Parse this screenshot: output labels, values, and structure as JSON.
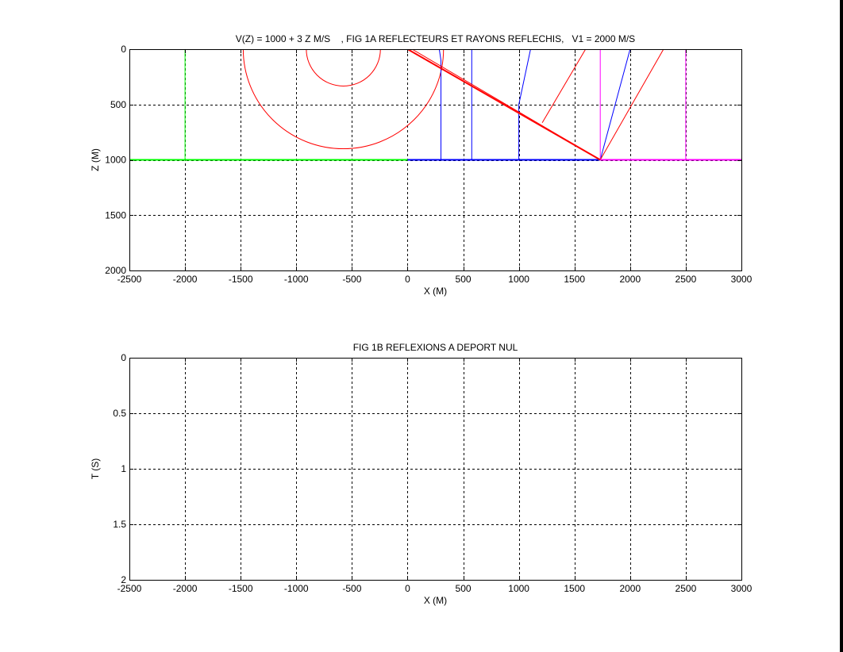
{
  "chart_data": [
    {
      "type": "line",
      "title": "V(Z) = 1000 + 3 Z M/S    , FIG 1A REFLECTEURS ET RAYONS REFLECHIS,   V1 = 2000 M/S",
      "xlabel": "X (M)",
      "ylabel": "Z (M)",
      "xlim": [
        -2500,
        3000
      ],
      "ylim": [
        0,
        2000
      ],
      "y_reversed": true,
      "grid": true,
      "xticks": [
        "-2500",
        "-2000",
        "-1500",
        "-1000",
        "-500",
        "0",
        "500",
        "1000",
        "1500",
        "2000",
        "2500",
        "3000"
      ],
      "yticks": [
        "0",
        "500",
        "1000",
        "1500",
        "2000"
      ],
      "reflectors": [
        {
          "color": "#00ff00",
          "x": [
            -2500,
            0
          ],
          "y": [
            1000,
            1000
          ]
        },
        {
          "color": "#0000ff",
          "x": [
            0,
            1732
          ],
          "y": [
            1000,
            1000
          ]
        },
        {
          "color": "#ff00ff",
          "x": [
            1732,
            3000
          ],
          "y": [
            1000,
            1000
          ]
        },
        {
          "color": "#ff0000",
          "x": [
            0,
            1732
          ],
          "y": [
            0,
            1000
          ]
        }
      ],
      "rays": [
        {
          "color": "#00ff00",
          "x": [
            -2000,
            -2000
          ],
          "y": [
            0,
            1000
          ]
        },
        {
          "color": "#0000ff",
          "x": [
            285,
            300,
            300
          ],
          "y": [
            0,
            100,
            1000
          ]
        },
        {
          "color": "#0000ff",
          "x": [
            577,
            577
          ],
          "y": [
            0,
            1000
          ]
        },
        {
          "color": "#0000ff",
          "x": [
            1105,
            1000,
            1000
          ],
          "y": [
            0,
            500,
            1000
          ]
        },
        {
          "color": "#0000ff",
          "x": [
            2000,
            1732
          ],
          "y": [
            0,
            1000
          ]
        },
        {
          "color": "#ff00ff",
          "x": [
            1732,
            1732
          ],
          "y": [
            0,
            1000
          ]
        },
        {
          "color": "#ff00ff",
          "x": [
            2500,
            2500
          ],
          "y": [
            0,
            1000
          ]
        },
        {
          "color": "#ff0000",
          "x": [
            0,
            5,
            40,
            1732
          ],
          "y": [
            0,
            0,
            0,
            1000
          ]
        },
        {
          "color": "#ff0000",
          "x": [
            1600,
            1210
          ],
          "y": [
            0,
            665
          ]
        },
        {
          "color": "#ff0000",
          "x": [
            2300,
            1732
          ],
          "y": [
            0,
            1000
          ]
        }
      ],
      "arcs": [
        {
          "color": "#ff0000",
          "cx": -577,
          "cz": 0,
          "r": 333
        },
        {
          "color": "#ff0000",
          "cx": -577,
          "cz": 0,
          "r": 900
        }
      ]
    },
    {
      "type": "line",
      "title": "FIG 1B REFLEXIONS A DEPORT NUL",
      "xlabel": "X (M)",
      "ylabel": "T (S)",
      "xlim": [
        -2500,
        3000
      ],
      "ylim": [
        0,
        2
      ],
      "y_reversed": true,
      "grid": true,
      "xticks": [
        "-2500",
        "-2000",
        "-1500",
        "-1000",
        "-500",
        "0",
        "500",
        "1000",
        "1500",
        "2000",
        "2500",
        "3000"
      ],
      "yticks": [
        "0",
        "0.5",
        "1",
        "1.5",
        "2"
      ],
      "series": []
    }
  ]
}
